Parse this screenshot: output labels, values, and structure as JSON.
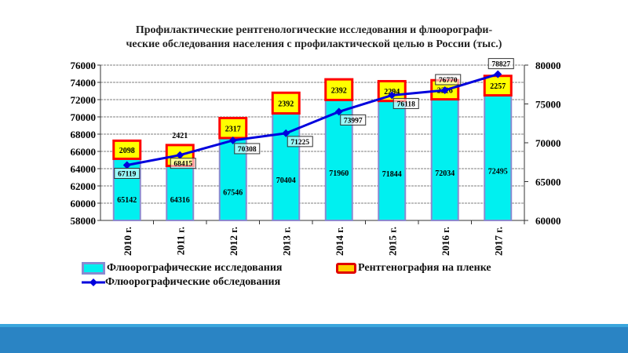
{
  "chart_data": {
    "type": "bar",
    "title_line1": "Профилактические рентгенологические исследования и флюорографи-",
    "title_line2": "ческие обследования населения с профилактической целью в России (тыс.)",
    "categories": [
      "2010 г.",
      "2011 г.",
      "2012 г.",
      "2013 г.",
      "2014 г.",
      "2015 г.",
      "2016 г.",
      "2017 г."
    ],
    "series": [
      {
        "name": "Флюорографические исследования",
        "type": "bar",
        "axis": "left",
        "color": "#00f0f0",
        "values": [
          65142,
          64316,
          67546,
          70404,
          71960,
          71844,
          72034,
          72495
        ]
      },
      {
        "name": "Рентгенография на пленке",
        "type": "bar-stacked",
        "axis": "left",
        "color": "#ffff00",
        "border": "#ff0000",
        "values": [
          2098,
          2421,
          2317,
          2392,
          2392,
          2294,
          2216,
          2257
        ]
      },
      {
        "name": "Флюорографические обследования",
        "type": "line",
        "axis": "right",
        "color": "#0000dd",
        "values": [
          67119,
          68415,
          70308,
          71225,
          73997,
          76118,
          76770,
          78827
        ]
      }
    ],
    "left_axis": {
      "min": 58000,
      "max": 76000,
      "step": 2000,
      "ticks": [
        "58000",
        "60000",
        "62000",
        "64000",
        "66000",
        "68000",
        "70000",
        "72000",
        "74000",
        "76000"
      ]
    },
    "right_axis": {
      "min": 60000,
      "max": 80000,
      "step": 5000,
      "ticks": [
        "60000",
        "65000",
        "70000",
        "75000",
        "80000"
      ]
    },
    "grid": true,
    "legend_position": "bottom"
  }
}
